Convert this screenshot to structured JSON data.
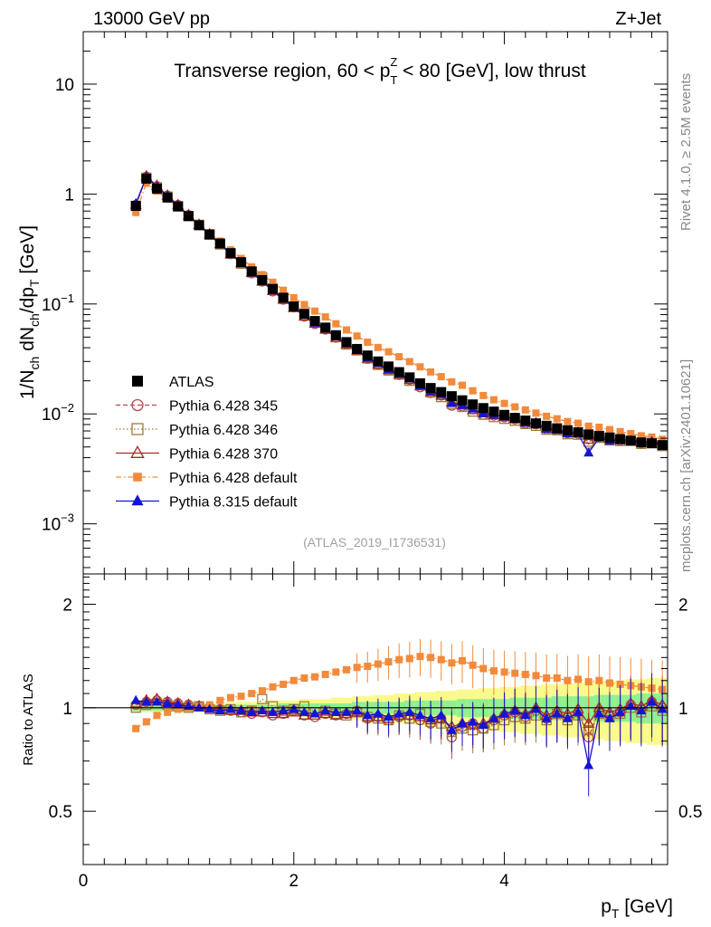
{
  "header": {
    "left": "13000 GeV pp",
    "right": "Z+Jet"
  },
  "side_labels": {
    "rivet": "Rivet 4.1.0, ≥ 2.5M events",
    "mcplots": "mcplots.cern.ch [arXiv:2401.10621]"
  },
  "chart_data": {
    "type": "scatter",
    "title": "Transverse region, 60 < pT^Z < 80 [GeV], low thrust",
    "title_parts": {
      "prefix": "Transverse region, 60 < p",
      "sup": "Z",
      "sub": "T",
      "suffix": " < 80 [GeV], low thrust"
    },
    "watermark": "(ATLAS_2019_I1736531)",
    "xlabel": "p_T [GeV]",
    "xlabel_parts": {
      "main": "p",
      "sub": "T",
      "unit": " [GeV]"
    },
    "ylabel": "1/N_ch dN_ch/dp_T [GeV]",
    "ylabel_parts": [
      "1/N",
      "ch",
      " dN",
      "ch",
      "/dp",
      "T",
      " [GeV]"
    ],
    "ratio_ylabel": "Ratio to ATLAS",
    "xlim": [
      0,
      5.55
    ],
    "ylim": [
      0.00035,
      30
    ],
    "yscale": "log",
    "ratio_ylim": [
      0.35,
      2.45
    ],
    "xticks": [
      "0",
      "2",
      "4"
    ],
    "xtick_values": [
      0,
      2,
      4
    ],
    "yticks": [
      {
        "value": 10,
        "label": "10",
        "exp": ""
      },
      {
        "value": 1,
        "label": "1",
        "exp": ""
      },
      {
        "value": 0.1,
        "label": "10",
        "exp": "−1"
      },
      {
        "value": 0.01,
        "label": "10",
        "exp": "−2"
      },
      {
        "value": 0.001,
        "label": "10",
        "exp": "−3"
      }
    ],
    "ratio_yticks": [
      {
        "value": 2,
        "label": "2"
      },
      {
        "value": 1,
        "label": "1"
      },
      {
        "value": 0.5,
        "label": "0.5"
      }
    ],
    "x": [
      0.5,
      0.6,
      0.7,
      0.8,
      0.9,
      1.0,
      1.1,
      1.2,
      1.3,
      1.4,
      1.5,
      1.6,
      1.7,
      1.8,
      1.9,
      2.0,
      2.1,
      2.2,
      2.3,
      2.4,
      2.5,
      2.6,
      2.7,
      2.8,
      2.9,
      3.0,
      3.1,
      3.2,
      3.3,
      3.4,
      3.5,
      3.6,
      3.7,
      3.8,
      3.9,
      4.0,
      4.1,
      4.2,
      4.3,
      4.4,
      4.5,
      4.6,
      4.7,
      4.8,
      4.9,
      5.0,
      5.1,
      5.2,
      5.3,
      5.4,
      5.5
    ],
    "series": [
      {
        "name": "ATLAS",
        "color": "#000000",
        "marker": "square-filled",
        "values": [
          0.78,
          1.38,
          1.12,
          0.93,
          0.77,
          0.63,
          0.52,
          0.43,
          0.355,
          0.29,
          0.24,
          0.198,
          0.165,
          0.137,
          0.114,
          0.095,
          0.081,
          0.07,
          0.061,
          0.052,
          0.045,
          0.039,
          0.034,
          0.03,
          0.027,
          0.024,
          0.0215,
          0.019,
          0.0172,
          0.0158,
          0.0145,
          0.0133,
          0.0122,
          0.0113,
          0.0105,
          0.0098,
          0.0092,
          0.0087,
          0.0082,
          0.0078,
          0.0074,
          0.0071,
          0.0068,
          0.0065,
          0.0063,
          0.0061,
          0.0059,
          0.0057,
          0.0055,
          0.0054,
          0.0052
        ]
      },
      {
        "name": "Pythia 6.428 345",
        "color": "#b24a4a",
        "marker": "circle-open",
        "dash": "5,3",
        "ratio": [
          1.02,
          1.04,
          1.05,
          1.04,
          1.03,
          1.02,
          1.01,
          1.0,
          0.99,
          0.98,
          0.97,
          0.96,
          0.97,
          0.95,
          0.96,
          0.98,
          0.95,
          0.94,
          0.96,
          0.95,
          0.96,
          0.98,
          0.93,
          0.94,
          0.92,
          0.94,
          0.95,
          0.92,
          0.9,
          0.93,
          0.82,
          0.88,
          0.9,
          0.87,
          0.92,
          0.95,
          0.97,
          0.94,
          0.98,
          0.93,
          0.96,
          0.94,
          0.97,
          0.82,
          0.98,
          0.95,
          0.97,
          1.02,
          0.99,
          1.04,
          1.0
        ]
      },
      {
        "name": "Pythia 6.428 346",
        "color": "#a07b3a",
        "marker": "square-open",
        "dash": "1.5,2.5",
        "ratio": [
          1.0,
          1.02,
          1.03,
          1.02,
          1.01,
          1.0,
          1.01,
          0.99,
          0.98,
          0.99,
          0.97,
          0.98,
          1.06,
          1.01,
          0.98,
          0.99,
          1.01,
          0.97,
          0.98,
          0.96,
          0.95,
          0.97,
          0.94,
          0.93,
          0.92,
          0.95,
          0.93,
          0.96,
          0.91,
          0.9,
          0.85,
          0.87,
          0.86,
          0.87,
          0.89,
          0.92,
          0.94,
          0.93,
          0.95,
          0.92,
          0.96,
          0.92,
          0.95,
          0.86,
          0.96,
          0.94,
          0.96,
          1.0,
          0.97,
          1.01,
          0.98
        ]
      },
      {
        "name": "Pythia 6.428 370",
        "color": "#a52a2a",
        "marker": "triangle-open",
        "dash": "",
        "ratio": [
          1.03,
          1.05,
          1.06,
          1.04,
          1.03,
          1.02,
          1.01,
          1.0,
          0.99,
          0.98,
          0.98,
          0.97,
          0.97,
          0.96,
          0.96,
          0.97,
          0.95,
          0.95,
          0.96,
          0.95,
          0.96,
          0.97,
          0.94,
          0.94,
          0.93,
          0.95,
          0.95,
          0.94,
          0.92,
          0.93,
          0.88,
          0.9,
          0.89,
          0.9,
          0.93,
          0.96,
          0.98,
          0.96,
          1.0,
          0.95,
          0.98,
          0.96,
          0.99,
          0.9,
          1.0,
          0.97,
          0.99,
          1.03,
          1.01,
          1.05,
          1.02
        ]
      },
      {
        "name": "Pythia 6.428 default",
        "color": "#f28a3c",
        "marker": "square-filled-small",
        "dash": "6,3,1.5,3",
        "ratio": [
          0.87,
          0.91,
          0.95,
          0.97,
          0.99,
          1.0,
          1.01,
          1.02,
          1.05,
          1.07,
          1.08,
          1.1,
          1.12,
          1.15,
          1.17,
          1.2,
          1.22,
          1.23,
          1.25,
          1.27,
          1.29,
          1.31,
          1.32,
          1.34,
          1.36,
          1.38,
          1.39,
          1.41,
          1.4,
          1.38,
          1.35,
          1.37,
          1.33,
          1.3,
          1.28,
          1.27,
          1.26,
          1.25,
          1.24,
          1.22,
          1.22,
          1.2,
          1.21,
          1.19,
          1.2,
          1.18,
          1.17,
          1.16,
          1.15,
          1.14,
          1.13
        ]
      },
      {
        "name": "Pythia 8.315 default",
        "color": "#1414d2",
        "marker": "triangle-filled",
        "dash": "",
        "ratio": [
          1.05,
          1.04,
          1.04,
          1.03,
          1.02,
          1.01,
          1.0,
          0.99,
          0.98,
          0.99,
          0.98,
          0.97,
          0.98,
          0.97,
          0.98,
          0.99,
          0.97,
          0.96,
          0.98,
          0.97,
          0.97,
          0.98,
          0.95,
          0.96,
          0.94,
          0.96,
          0.97,
          0.95,
          0.93,
          0.95,
          0.86,
          0.9,
          0.91,
          0.89,
          0.93,
          0.96,
          0.98,
          0.95,
          0.99,
          0.93,
          0.96,
          0.93,
          0.97,
          0.68,
          0.96,
          0.93,
          0.97,
          1.01,
          0.98,
          1.04,
          0.99
        ]
      }
    ],
    "ratio_bands": {
      "inner_color": "#90f090",
      "outer_color": "#fafa8c",
      "inner": [
        0.02,
        0.02,
        0.02,
        0.02,
        0.02,
        0.02,
        0.02,
        0.02,
        0.02,
        0.02,
        0.02,
        0.02,
        0.02,
        0.02,
        0.03,
        0.03,
        0.03,
        0.03,
        0.03,
        0.03,
        0.03,
        0.04,
        0.04,
        0.04,
        0.04,
        0.04,
        0.05,
        0.05,
        0.05,
        0.05,
        0.05,
        0.06,
        0.06,
        0.06,
        0.06,
        0.06,
        0.07,
        0.07,
        0.07,
        0.07,
        0.08,
        0.08,
        0.08,
        0.08,
        0.09,
        0.09,
        0.09,
        0.09,
        0.1,
        0.1,
        0.1
      ],
      "outer": [
        0.03,
        0.03,
        0.03,
        0.03,
        0.03,
        0.03,
        0.03,
        0.03,
        0.03,
        0.04,
        0.04,
        0.04,
        0.04,
        0.05,
        0.05,
        0.05,
        0.06,
        0.06,
        0.06,
        0.07,
        0.07,
        0.08,
        0.08,
        0.09,
        0.09,
        0.1,
        0.1,
        0.11,
        0.11,
        0.12,
        0.12,
        0.13,
        0.13,
        0.14,
        0.14,
        0.15,
        0.15,
        0.16,
        0.16,
        0.17,
        0.17,
        0.18,
        0.18,
        0.19,
        0.19,
        0.2,
        0.2,
        0.21,
        0.21,
        0.22,
        0.22
      ]
    }
  }
}
